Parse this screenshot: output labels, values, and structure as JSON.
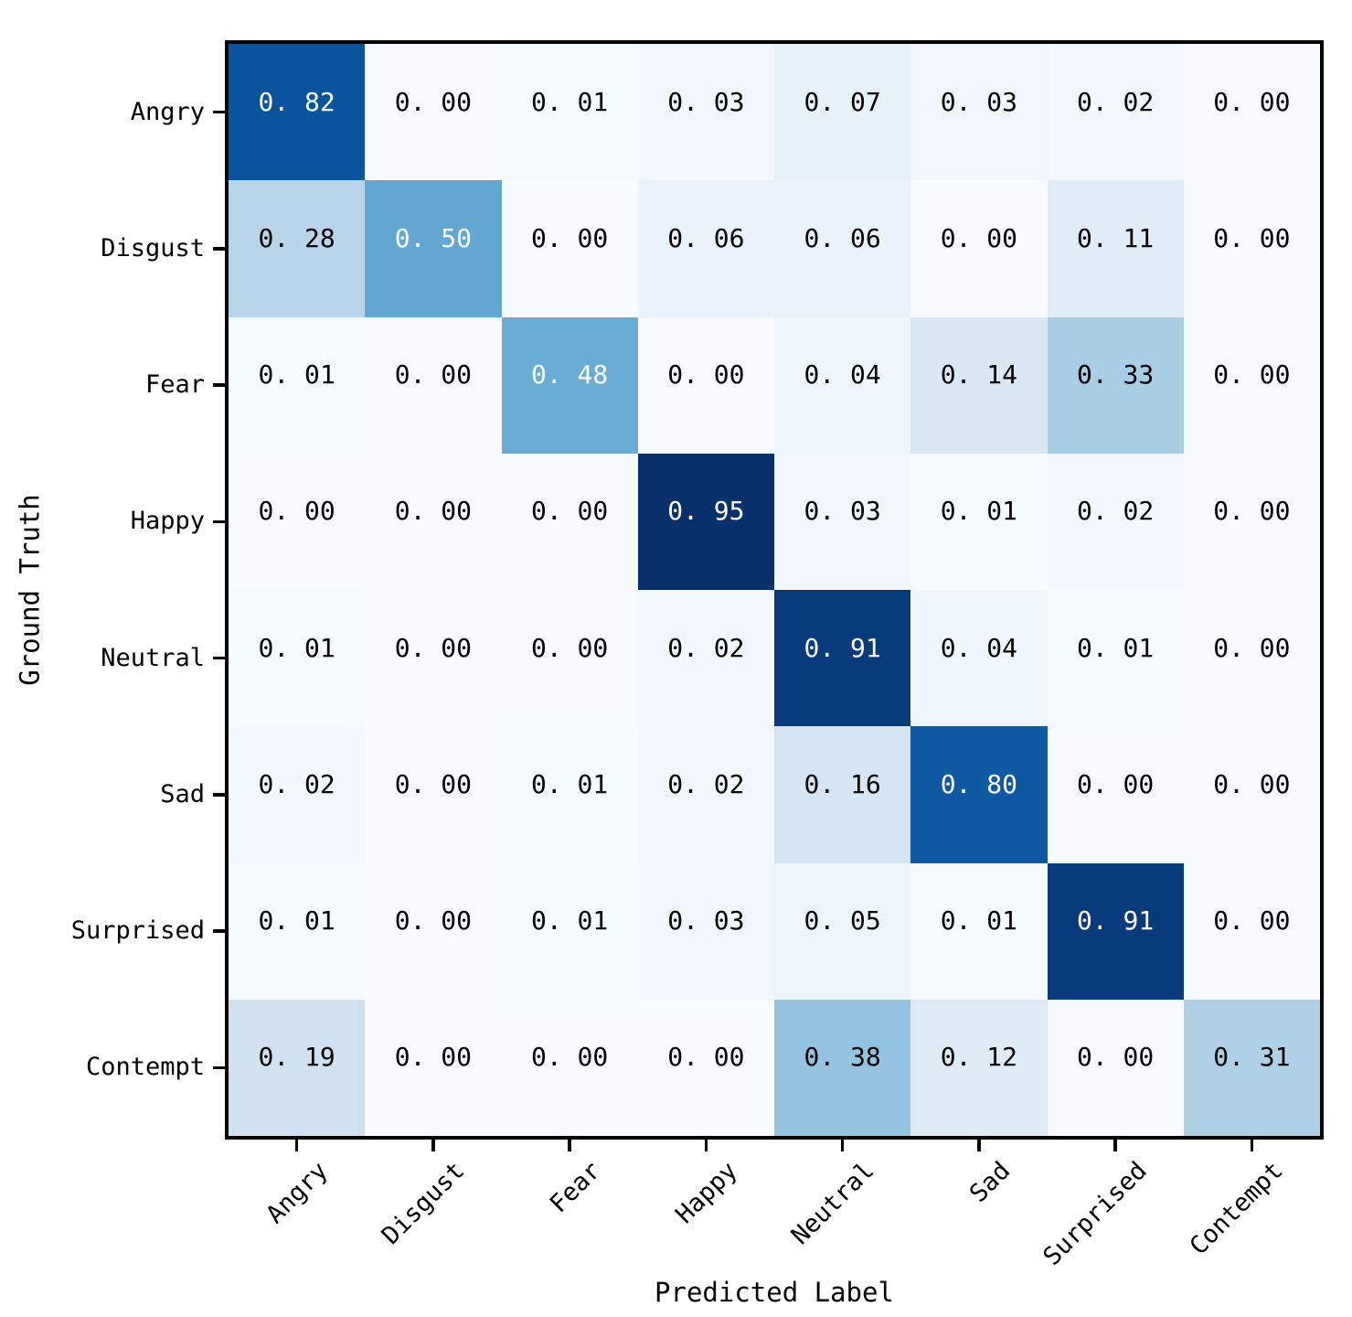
{
  "chart_data": {
    "type": "heatmap",
    "title": "",
    "xlabel": "Predicted Label",
    "ylabel": "Ground Truth",
    "x_tick_labels": [
      "Angry",
      "Disgust",
      "Fear",
      "Happy",
      "Neutral",
      "Sad",
      "Surprised",
      "Contempt"
    ],
    "y_tick_labels": [
      "Angry",
      "Disgust",
      "Fear",
      "Happy",
      "Neutral",
      "Sad",
      "Surprised",
      "Contempt"
    ],
    "matrix": [
      [
        0.82,
        0.0,
        0.01,
        0.03,
        0.07,
        0.03,
        0.02,
        0.0
      ],
      [
        0.28,
        0.5,
        0.0,
        0.06,
        0.06,
        0.0,
        0.11,
        0.0
      ],
      [
        0.01,
        0.0,
        0.48,
        0.0,
        0.04,
        0.14,
        0.33,
        0.0
      ],
      [
        0.0,
        0.0,
        0.0,
        0.95,
        0.03,
        0.01,
        0.02,
        0.0
      ],
      [
        0.01,
        0.0,
        0.0,
        0.02,
        0.91,
        0.04,
        0.01,
        0.0
      ],
      [
        0.02,
        0.0,
        0.01,
        0.02,
        0.16,
        0.8,
        0.0,
        0.0
      ],
      [
        0.01,
        0.0,
        0.01,
        0.03,
        0.05,
        0.01,
        0.91,
        0.0
      ],
      [
        0.19,
        0.0,
        0.0,
        0.0,
        0.38,
        0.12,
        0.0,
        0.31
      ]
    ],
    "value_format": "two decimals with wide gap after decimal point, e.g. 0. 82",
    "colormap": "Blues",
    "vmin": 0.0,
    "vmax": 0.95,
    "colormap_stops": [
      [
        0.0,
        "#f7fbff"
      ],
      [
        0.125,
        "#deebf7"
      ],
      [
        0.25,
        "#c6dbef"
      ],
      [
        0.375,
        "#9ecae1"
      ],
      [
        0.5,
        "#6baed6"
      ],
      [
        0.625,
        "#4292c6"
      ],
      [
        0.75,
        "#2171b5"
      ],
      [
        0.875,
        "#08519c"
      ],
      [
        1.0,
        "#08306b"
      ]
    ],
    "colors": {
      "cell_text_low": "#000000",
      "cell_text_high": "#ffffff",
      "spine": "#000000",
      "background": "#ffffff"
    },
    "legend": "none",
    "grid": "off"
  }
}
